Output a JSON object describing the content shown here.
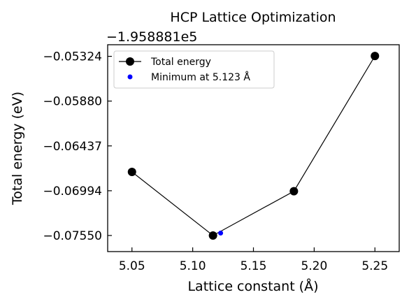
{
  "chart_data": {
    "type": "line",
    "title": "HCP Lattice Optimization",
    "xlabel": "Lattice constant (Å)",
    "ylabel": "Total energy (eV)",
    "offset_label": "−1.958881e5",
    "xlim": [
      5.03,
      5.27
    ],
    "ylim": [
      -0.0775,
      -0.0518
    ],
    "xticks": [
      5.05,
      5.1,
      5.15,
      5.2,
      5.25
    ],
    "xtick_labels": [
      "5.05",
      "5.10",
      "5.15",
      "5.20",
      "5.25"
    ],
    "yticks": [
      -0.05324,
      -0.0588,
      -0.06437,
      -0.06994,
      -0.0755
    ],
    "ytick_labels": [
      "−0.05324",
      "−0.05880",
      "−0.06437",
      "−0.06994",
      "−0.07550"
    ],
    "grid": false,
    "legend_position": "top-left",
    "series": [
      {
        "name": "Total energy",
        "color": "#000000",
        "marker": "circle",
        "x": [
          5.05,
          5.1167,
          5.1833,
          5.25
        ],
        "y": [
          -0.0676,
          -0.0755,
          -0.07,
          -0.0532
        ]
      },
      {
        "name": "Minimum at 5.123 Å",
        "color": "#0000ff",
        "marker": "point",
        "x": [
          5.123
        ],
        "y": [
          -0.0752
        ]
      }
    ]
  }
}
